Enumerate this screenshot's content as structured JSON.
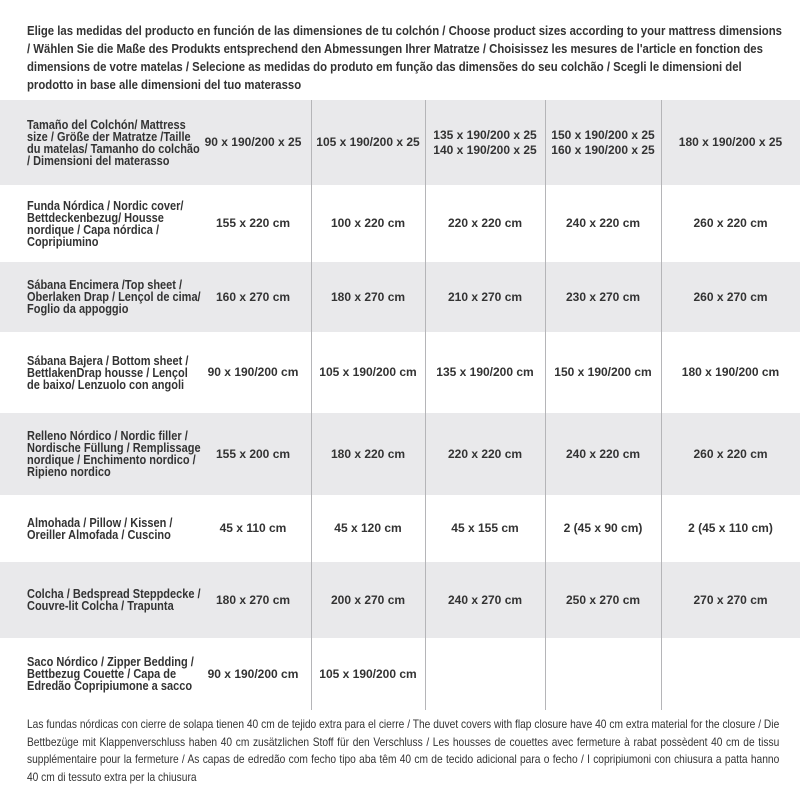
{
  "intro": "Elige las medidas del producto en función de las dimensiones de tu colchón / Choose product sizes according to your mattress dimensions / Wählen Sie die Maße des Produkts entsprechend den Abmessungen Ihrer Matratze / Choisissez les mesures de l'article en fonction des dimensions de votre matelas / Selecione as medidas do produto em função das dimensões do seu colchão / Scegli le dimensioni del prodotto in base alle dimensioni del tuo materasso",
  "rows": [
    {
      "label": "Tamaño del Colchón/ Mattress size / Größe der Matratze /Taille du matelas/ Tamanho do colchão / Dimensioni del materasso",
      "values": [
        "90 x 190/200 x 25",
        "105 x 190/200 x 25",
        "135 x 190/200 x 25\n140 x 190/200 x 25",
        "150 x 190/200 x 25\n160 x 190/200 x 25",
        "180 x 190/200 x 25"
      ]
    },
    {
      "label": "Funda Nórdica /  Nordic cover/ Bettdeckenbezug/ Housse nordique  / Capa nórdica / Copripiumino",
      "values": [
        "155 x 220 cm",
        "100 x 220 cm",
        "220 x 220 cm",
        "240 x 220 cm",
        "260 x 220 cm"
      ]
    },
    {
      "label": "Sábana Encimera /Top sheet / Oberlaken Drap / Lençol de cima/ Foglio da appoggio",
      "values": [
        "160 x 270 cm",
        "180 x 270 cm",
        "210 x 270 cm",
        "230 x 270 cm",
        "260 x 270 cm"
      ]
    },
    {
      "label": "Sábana Bajera / Bottom sheet / BettlakenDrap housse / Lençol de baixo/ Lenzuolo con angoli",
      "values": [
        "90 x 190/200 cm",
        "105 x 190/200 cm",
        "135 x 190/200 cm",
        "150 x 190/200 cm",
        "180 x 190/200 cm"
      ]
    },
    {
      "label": "Relleno Nórdico / Nordic filler / Nordische Füllung / Remplissage nordique / Enchimento nordico / Ripieno nordico",
      "values": [
        "155 x 200 cm",
        "180 x 220 cm",
        "220 x 220 cm",
        "240 x 220 cm",
        "260 x 220 cm"
      ]
    },
    {
      "label": "Almohada  / Pillow / Kissen / Oreiller Almofada / Cuscino",
      "values": [
        "45 x 110 cm",
        "45 x 120 cm",
        "45 x 155 cm",
        "2 (45 x 90 cm)",
        "2 (45 x 110 cm)"
      ]
    },
    {
      "label": "Colcha / Bedspread Steppdecke / Couvre-lit Colcha / Trapunta",
      "values": [
        "180 x 270 cm",
        "200 x 270 cm",
        "240 x 270 cm",
        "250 x 270 cm",
        "270 x 270 cm"
      ]
    },
    {
      "label": "Saco Nórdico / Zipper Bedding / Bettbezug Couette  / Capa de Edredão Copripiumone a sacco",
      "values": [
        "90 x 190/200 cm",
        "105 x 190/200 cm",
        "",
        "",
        ""
      ]
    }
  ],
  "footnote": "Las fundas nórdicas con cierre de solapa tienen 40 cm de tejido extra para el cierre  / The duvet covers with flap closure have 40 cm extra material for the closure / Die Bettbezüge mit Klappenverschluss haben 40 cm zusätzlichen Stoff für den Verschluss / Les housses de couettes avec fermeture à rabat possèdent 40 cm de tissu supplémentaire pour la fermeture / As capas de edredão com fecho tipo aba têm 40 cm de tecido adicional para o fecho / I copripiumoni con chiusura a patta hanno 40 cm di tessuto extra per la chiusura",
  "colors": {
    "row_alt": "#e9e9eb",
    "divider": "#b5b5b8",
    "text": "#333333"
  }
}
